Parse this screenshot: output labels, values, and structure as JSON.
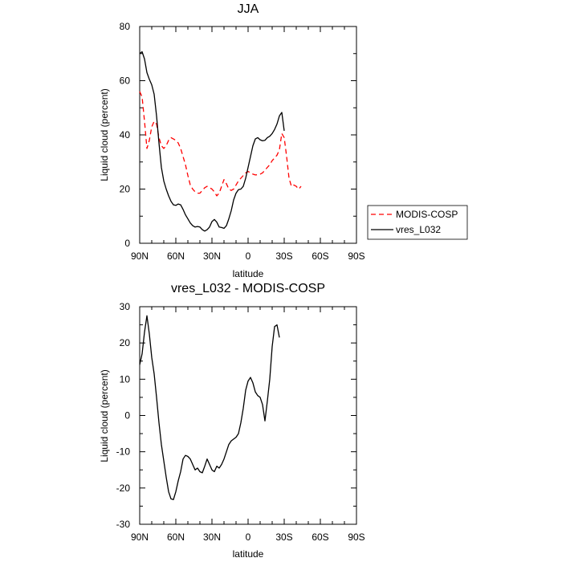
{
  "chart_data": [
    {
      "type": "line",
      "title": "JJA",
      "xlabel": "latitude",
      "ylabel": "Liquid cloud (percent)",
      "xlim": [
        90,
        -90
      ],
      "ylim": [
        0,
        80
      ],
      "xticks": [
        {
          "value": 90,
          "label": "90N"
        },
        {
          "value": 60,
          "label": "60N"
        },
        {
          "value": 30,
          "label": "30N"
        },
        {
          "value": 0,
          "label": "0"
        },
        {
          "value": -30,
          "label": "30S"
        },
        {
          "value": -60,
          "label": "60S"
        },
        {
          "value": -90,
          "label": "90S"
        }
      ],
      "yticks": [
        {
          "value": 0,
          "label": "0"
        },
        {
          "value": 20,
          "label": "20"
        },
        {
          "value": 40,
          "label": "40"
        },
        {
          "value": 60,
          "label": "60"
        },
        {
          "value": 80,
          "label": "80"
        }
      ],
      "legend": {
        "position": "right"
      },
      "series": [
        {
          "name": "MODIS-COSP",
          "color": "#ff0000",
          "dash": "dashed",
          "points": [
            [
              90,
              56
            ],
            [
              88,
              54
            ],
            [
              86,
              45
            ],
            [
              84,
              35
            ],
            [
              82,
              38
            ],
            [
              80,
              43
            ],
            [
              78,
              45
            ],
            [
              76,
              44
            ],
            [
              74,
              39
            ],
            [
              72,
              36
            ],
            [
              70,
              35
            ],
            [
              68,
              36
            ],
            [
              66,
              38
            ],
            [
              64,
              39
            ],
            [
              62,
              38.5
            ],
            [
              60,
              38
            ],
            [
              58,
              37
            ],
            [
              56,
              35
            ],
            [
              54,
              32
            ],
            [
              52,
              29
            ],
            [
              50,
              25
            ],
            [
              48,
              21.5
            ],
            [
              46,
              20
            ],
            [
              44,
              19
            ],
            [
              42,
              18.5
            ],
            [
              40,
              18.5
            ],
            [
              38,
              19.5
            ],
            [
              36,
              20.5
            ],
            [
              34,
              21
            ],
            [
              32,
              20.5
            ],
            [
              30,
              20
            ],
            [
              28,
              19
            ],
            [
              26,
              17.5
            ],
            [
              24,
              18.5
            ],
            [
              22,
              21
            ],
            [
              20,
              23.5
            ],
            [
              18,
              22
            ],
            [
              16,
              20
            ],
            [
              14,
              19.5
            ],
            [
              12,
              20
            ],
            [
              10,
              21.5
            ],
            [
              8,
              23
            ],
            [
              6,
              24
            ],
            [
              4,
              25
            ],
            [
              2,
              26
            ],
            [
              0,
              26.5
            ],
            [
              -2,
              26
            ],
            [
              -4,
              25.5
            ],
            [
              -6,
              25.2
            ],
            [
              -8,
              25.3
            ],
            [
              -10,
              25.5
            ],
            [
              -12,
              26
            ],
            [
              -14,
              27
            ],
            [
              -16,
              28
            ],
            [
              -18,
              29
            ],
            [
              -20,
              30.5
            ],
            [
              -22,
              31.5
            ],
            [
              -24,
              32.5
            ],
            [
              -26,
              34.5
            ],
            [
              -28,
              40.5
            ],
            [
              -30,
              39
            ],
            [
              -32,
              32
            ],
            [
              -34,
              24
            ],
            [
              -36,
              21
            ],
            [
              -38,
              21.5
            ],
            [
              -40,
              21
            ],
            [
              -42,
              20
            ],
            [
              -44,
              21
            ]
          ]
        },
        {
          "name": "vres_L032",
          "color": "#000000",
          "dash": "solid",
          "points": [
            [
              90,
              70
            ],
            [
              88,
              70.7
            ],
            [
              86,
              68
            ],
            [
              84,
              63
            ],
            [
              82,
              60.5
            ],
            [
              80,
              58.5
            ],
            [
              78,
              55
            ],
            [
              76,
              47
            ],
            [
              74,
              37
            ],
            [
              72,
              28
            ],
            [
              70,
              23
            ],
            [
              68,
              20
            ],
            [
              66,
              17.5
            ],
            [
              64,
              15.5
            ],
            [
              62,
              14.2
            ],
            [
              60,
              14
            ],
            [
              58,
              14.5
            ],
            [
              56,
              14.2
            ],
            [
              54,
              12.5
            ],
            [
              52,
              10.5
            ],
            [
              50,
              9
            ],
            [
              48,
              7.5
            ],
            [
              46,
              6.5
            ],
            [
              44,
              6
            ],
            [
              42,
              6.2
            ],
            [
              40,
              6
            ],
            [
              38,
              5
            ],
            [
              36,
              4.5
            ],
            [
              34,
              5
            ],
            [
              32,
              6
            ],
            [
              30,
              8
            ],
            [
              28,
              8.8
            ],
            [
              26,
              7.8
            ],
            [
              24,
              6
            ],
            [
              22,
              5.8
            ],
            [
              20,
              5.5
            ],
            [
              18,
              6.5
            ],
            [
              16,
              9
            ],
            [
              14,
              12
            ],
            [
              12,
              16
            ],
            [
              10,
              18.5
            ],
            [
              8,
              19.8
            ],
            [
              6,
              20
            ],
            [
              4,
              21
            ],
            [
              2,
              24
            ],
            [
              0,
              28
            ],
            [
              -2,
              32
            ],
            [
              -4,
              36
            ],
            [
              -6,
              38.5
            ],
            [
              -8,
              39
            ],
            [
              -10,
              38.2
            ],
            [
              -12,
              37.8
            ],
            [
              -14,
              38
            ],
            [
              -16,
              39
            ],
            [
              -18,
              39.5
            ],
            [
              -20,
              40.5
            ],
            [
              -22,
              42
            ],
            [
              -24,
              44
            ],
            [
              -26,
              47
            ],
            [
              -28,
              48.3
            ],
            [
              -30,
              41.5
            ]
          ]
        }
      ]
    },
    {
      "type": "line",
      "title": "vres_L032 - MODIS-COSP",
      "xlabel": "latitude",
      "ylabel": "Liquid cloud (percent)",
      "xlim": [
        90,
        -90
      ],
      "ylim": [
        -30,
        30
      ],
      "xticks": [
        {
          "value": 90,
          "label": "90N"
        },
        {
          "value": 60,
          "label": "60N"
        },
        {
          "value": 30,
          "label": "30N"
        },
        {
          "value": 0,
          "label": "0"
        },
        {
          "value": -30,
          "label": "30S"
        },
        {
          "value": -60,
          "label": "60S"
        },
        {
          "value": -90,
          "label": "90S"
        }
      ],
      "yticks": [
        {
          "value": -30,
          "label": "-30"
        },
        {
          "value": -20,
          "label": "-20"
        },
        {
          "value": -10,
          "label": "-10"
        },
        {
          "value": 0,
          "label": "0"
        },
        {
          "value": 10,
          "label": "10"
        },
        {
          "value": 20,
          "label": "20"
        },
        {
          "value": 30,
          "label": "30"
        }
      ],
      "series": [
        {
          "name": "vres_L032 - MODIS-COSP",
          "color": "#000000",
          "dash": "solid",
          "points": [
            [
              90,
              14
            ],
            [
              88,
              17
            ],
            [
              86,
              23
            ],
            [
              84,
              27.5
            ],
            [
              82,
              22.5
            ],
            [
              80,
              16
            ],
            [
              78,
              11.5
            ],
            [
              76,
              5
            ],
            [
              74,
              -2
            ],
            [
              72,
              -8
            ],
            [
              70,
              -12.5
            ],
            [
              68,
              -17
            ],
            [
              66,
              -21
            ],
            [
              64,
              -23
            ],
            [
              62,
              -23.2
            ],
            [
              60,
              -21
            ],
            [
              58,
              -18
            ],
            [
              56,
              -15.5
            ],
            [
              54,
              -12
            ],
            [
              52,
              -11
            ],
            [
              50,
              -11.3
            ],
            [
              48,
              -12
            ],
            [
              46,
              -13.5
            ],
            [
              44,
              -15
            ],
            [
              42,
              -14.5
            ],
            [
              40,
              -15.5
            ],
            [
              38,
              -15.8
            ],
            [
              36,
              -14
            ],
            [
              34,
              -12
            ],
            [
              32,
              -13.5
            ],
            [
              30,
              -15
            ],
            [
              28,
              -15.5
            ],
            [
              26,
              -14
            ],
            [
              24,
              -14.5
            ],
            [
              22,
              -13.5
            ],
            [
              20,
              -12
            ],
            [
              18,
              -10
            ],
            [
              16,
              -8
            ],
            [
              14,
              -7
            ],
            [
              12,
              -6.5
            ],
            [
              10,
              -6
            ],
            [
              8,
              -5
            ],
            [
              6,
              -2
            ],
            [
              4,
              2
            ],
            [
              2,
              7
            ],
            [
              0,
              9.5
            ],
            [
              -2,
              10.5
            ],
            [
              -4,
              9
            ],
            [
              -6,
              6.5
            ],
            [
              -8,
              5.5
            ],
            [
              -10,
              5
            ],
            [
              -12,
              3
            ],
            [
              -14,
              -1.5
            ],
            [
              -16,
              4
            ],
            [
              -18,
              10
            ],
            [
              -20,
              19
            ],
            [
              -22,
              24.5
            ],
            [
              -24,
              25
            ],
            [
              -26,
              21.5
            ]
          ]
        }
      ]
    }
  ]
}
